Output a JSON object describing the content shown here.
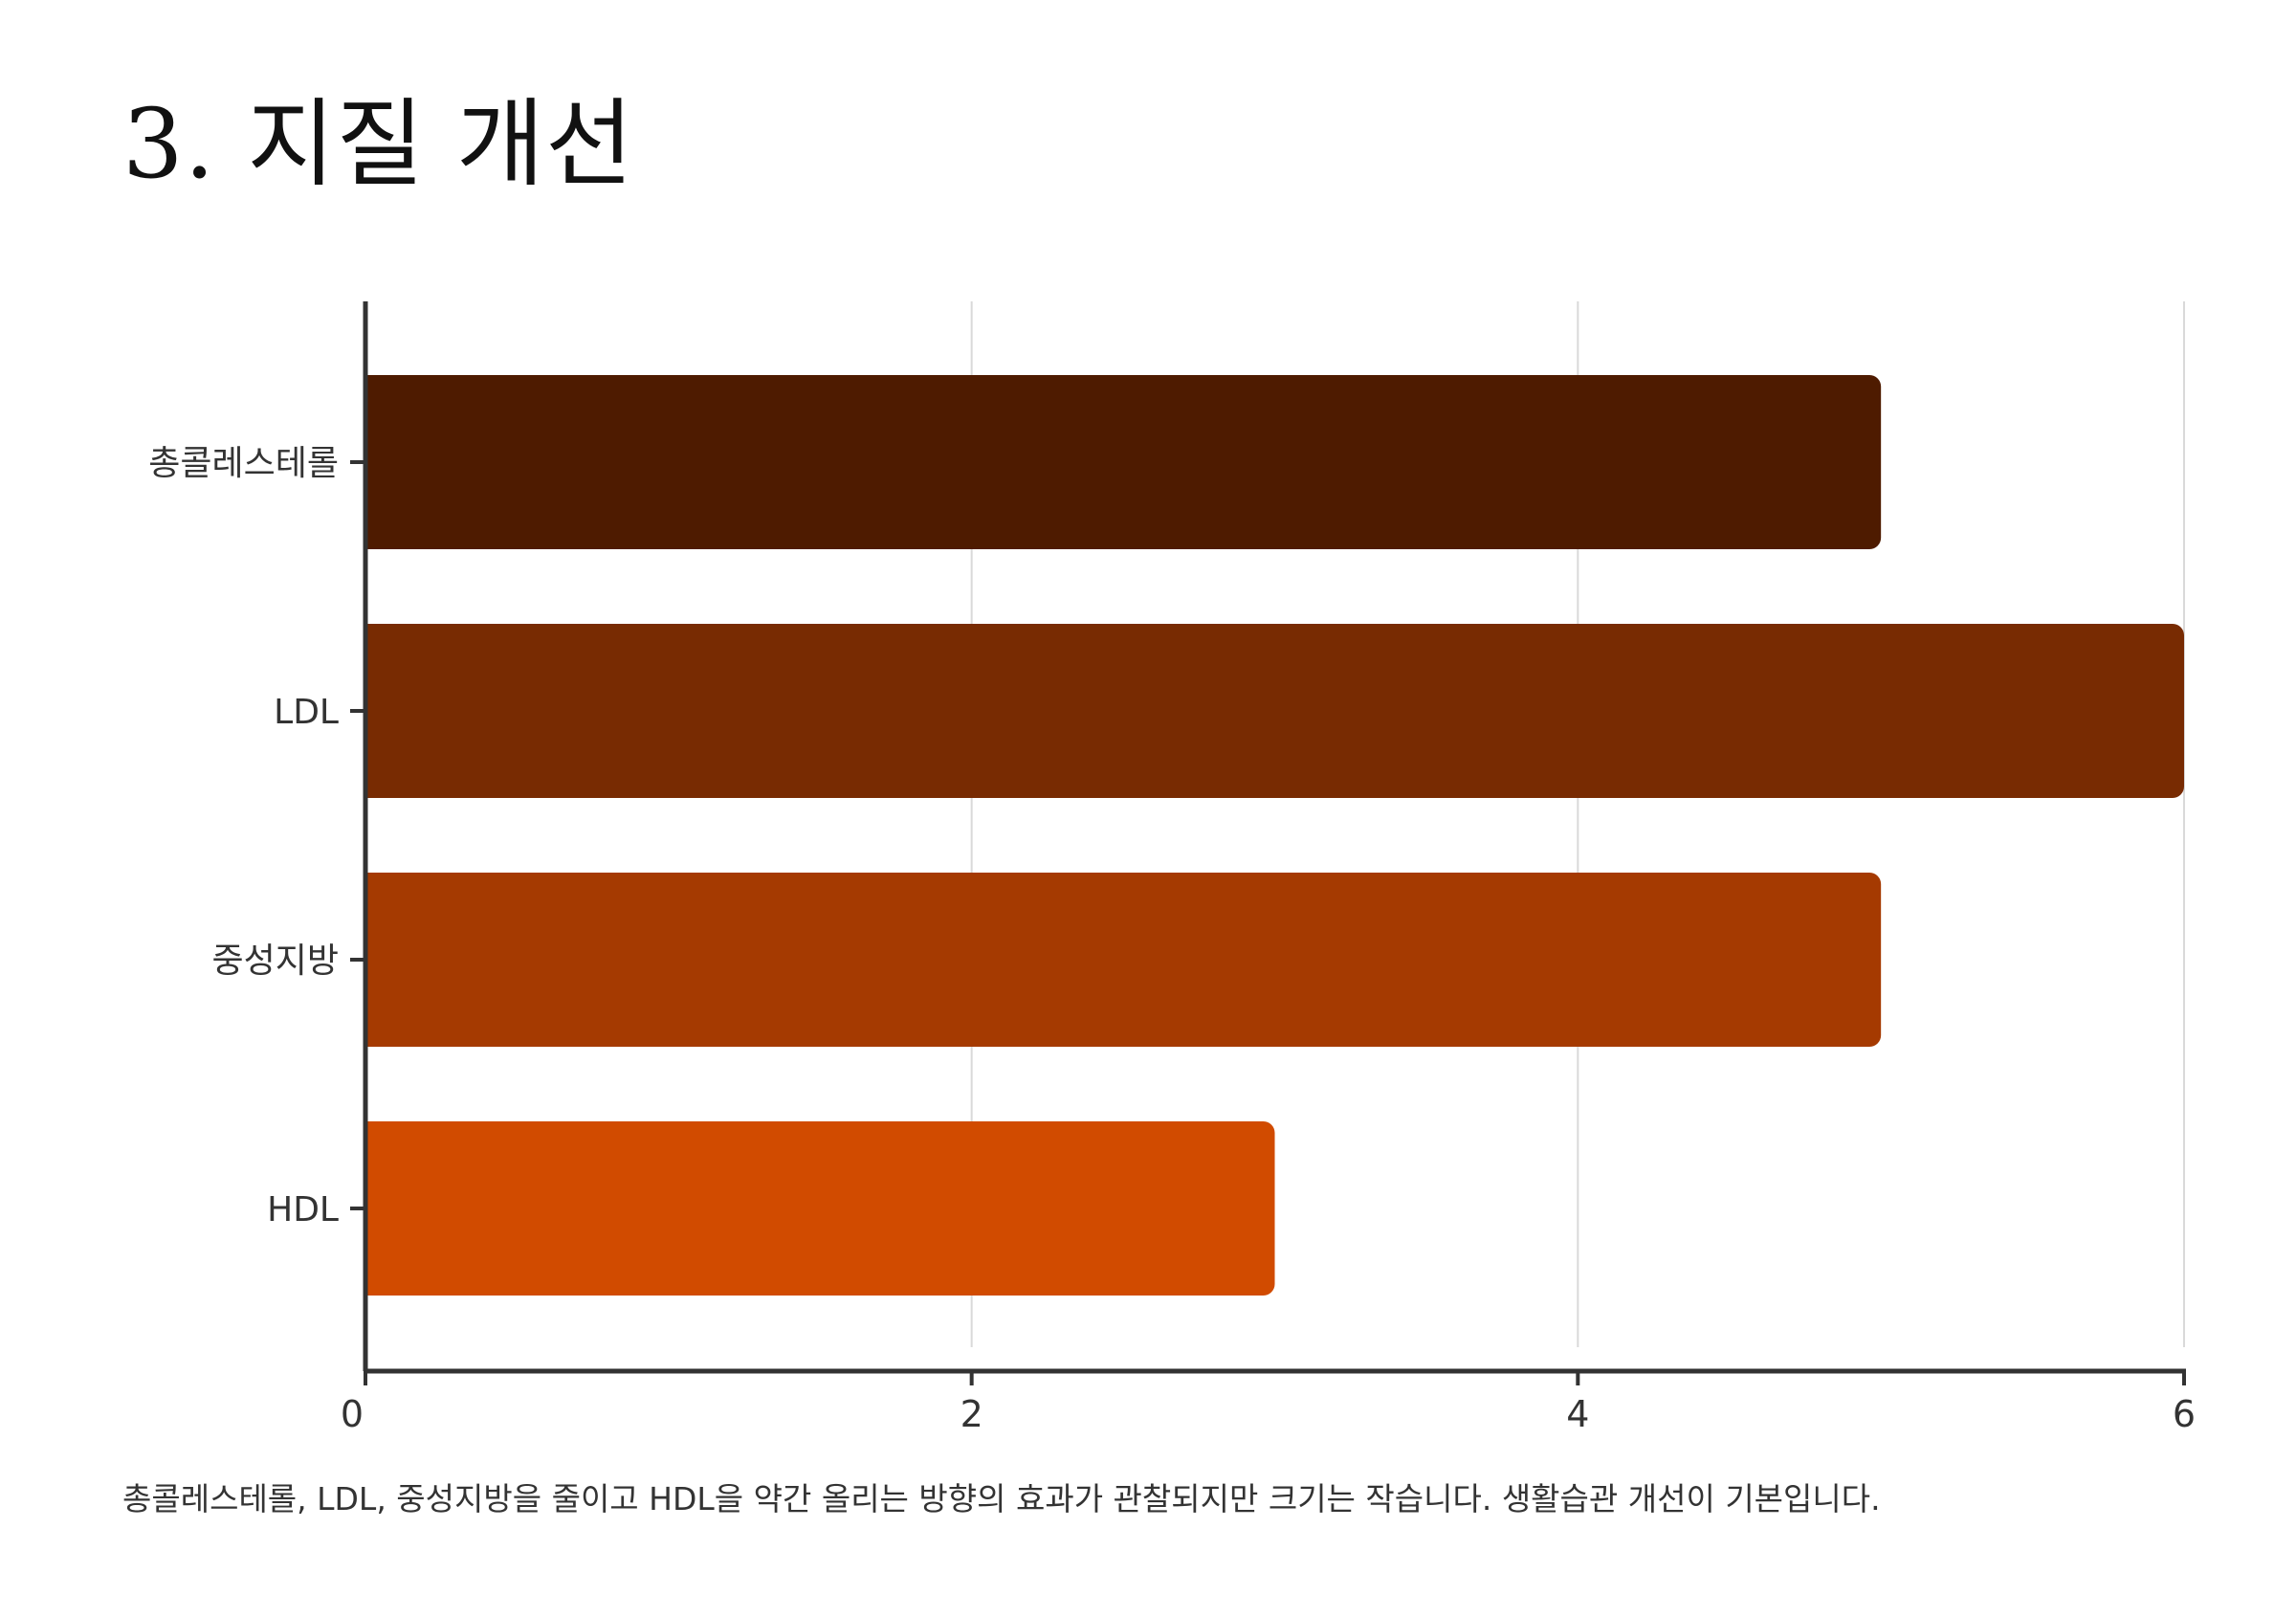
{
  "title": "3. 지질 개선",
  "caption": "총콜레스테롤, LDL, 중성지방을 줄이고 HDL을 약간 올리는 방향의 효과가 관찰되지만 크기는 작습니다. 생활습관 개선이 기본입니다.",
  "chart_data": {
    "type": "bar",
    "orientation": "horizontal",
    "categories": [
      "총콜레스테롤",
      "LDL",
      "중성지방",
      "HDL"
    ],
    "values": [
      5,
      6,
      5,
      3
    ],
    "colors": [
      "#4e1b00",
      "#782b02",
      "#a53a01",
      "#d14b00"
    ],
    "xlim": [
      0,
      6
    ],
    "xticks": [
      0,
      2,
      4,
      6
    ],
    "grid": "vertical",
    "xlabel": "",
    "ylabel": ""
  }
}
